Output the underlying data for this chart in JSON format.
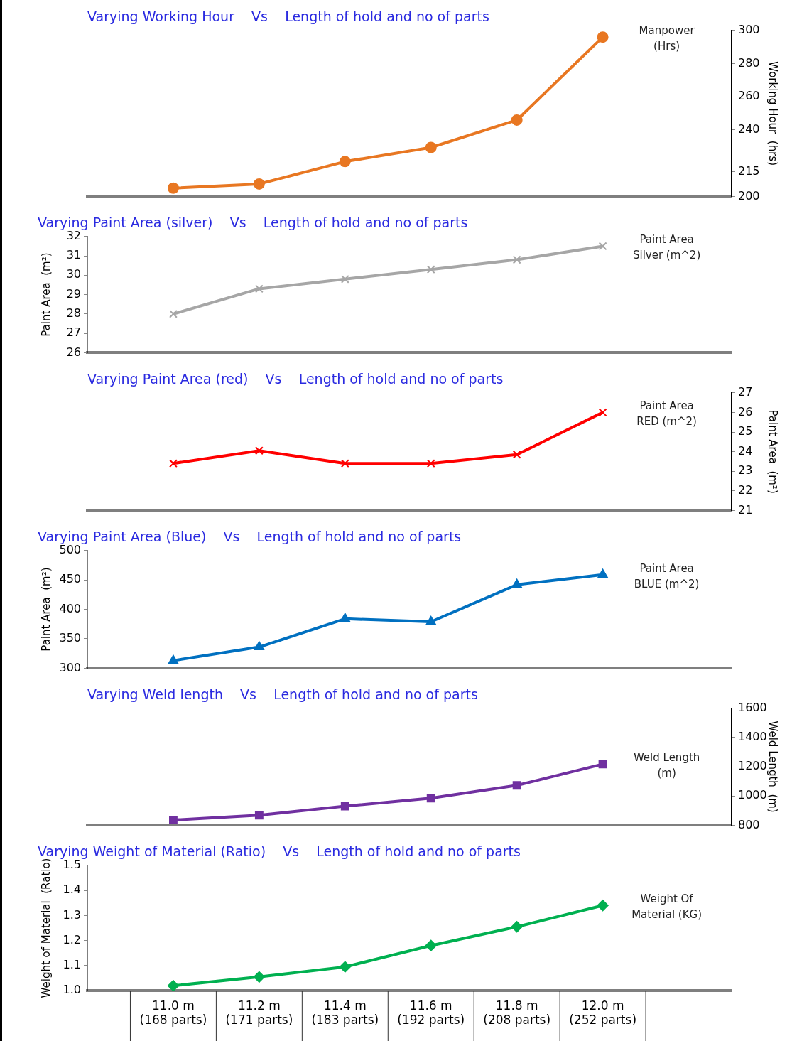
{
  "chart_data": [
    {
      "type": "line",
      "title": "Varying Working Hour    Vs    Length of hold and no of parts",
      "categories": [
        null,
        null,
        null,
        null,
        null,
        null
      ],
      "series": [
        {
          "name": "Manpower (Hrs)",
          "color": "#e87722",
          "values": [
            205,
            207.5,
            221,
            229.5,
            246,
            296
          ]
        }
      ],
      "ylabel": "Working Hour  (hrs)",
      "ylim": [
        200,
        300
      ],
      "yticks": [
        200,
        215,
        240,
        260,
        280,
        300
      ],
      "marker": "circle",
      "tick_labels": "y",
      "grid": false,
      "legend": false
    },
    {
      "type": "line",
      "title": "Varying Paint Area (silver)    Vs    Length of hold and no of parts",
      "categories": [
        null,
        null,
        null,
        null,
        null,
        null
      ],
      "series": [
        {
          "name": "Paint Area Silver (m^2)",
          "color": "#a6a6a6",
          "values": [
            28.0,
            29.3,
            29.8,
            30.3,
            30.8,
            31.5
          ]
        }
      ],
      "ylabel": "Paint Area  (m²)",
      "ylim": [
        26,
        32
      ],
      "yticks": [
        26,
        27,
        28,
        29,
        30,
        31,
        32
      ],
      "marker": "cross",
      "tick_labels": "y",
      "grid": false,
      "legend": false
    },
    {
      "type": "line",
      "title": "Varying Paint Area (red)    Vs    Length of hold and no of parts",
      "categories": [
        null,
        null,
        null,
        null,
        null,
        null
      ],
      "series": [
        {
          "name": "Paint Area RED (m^2)",
          "color": "#ff0000",
          "values": [
            23.4,
            24.05,
            23.4,
            23.4,
            23.85,
            26.0
          ]
        }
      ],
      "ylabel": "Paint Area  (m²)",
      "ylim": [
        21,
        27
      ],
      "yticks": [
        21,
        22,
        23,
        24,
        25,
        26,
        27
      ],
      "marker": "cross",
      "tick_labels": "y",
      "grid": false,
      "legend": false
    },
    {
      "type": "line",
      "title": "Varying Paint Area (Blue)    Vs    Length of hold and no of parts",
      "categories": [
        null,
        null,
        null,
        null,
        null,
        null
      ],
      "series": [
        {
          "name": "Paint Area BLUE (m^2)",
          "color": "#0070c0",
          "values": [
            313,
            336,
            384,
            379,
            442,
            459
          ]
        }
      ],
      "ylabel": "Paint Area  (m²)",
      "ylim": [
        300,
        500
      ],
      "yticks": [
        300,
        350,
        400,
        450,
        500
      ],
      "marker": "triangle",
      "tick_labels": "y",
      "grid": false,
      "legend": false
    },
    {
      "type": "line",
      "title": "Varying Weld length    Vs    Length of hold and no of parts",
      "categories": [
        null,
        null,
        null,
        null,
        null,
        null
      ],
      "series": [
        {
          "name": "Weld Length (m)",
          "color": "#7030a0",
          "values": [
            836,
            869,
            931,
            985,
            1073,
            1218
          ]
        }
      ],
      "ylabel": "Weld Length  (m)",
      "ylim": [
        800,
        1600
      ],
      "yticks": [
        800,
        1000,
        1200,
        1400,
        1600
      ],
      "marker": "square",
      "tick_labels": "y",
      "grid": false,
      "legend": false
    },
    {
      "type": "line",
      "title": "Varying Weight of Material (Ratio)    Vs    Length of hold and no of parts",
      "categories": [
        "11.0 m\n(168 parts)",
        "11.2 m\n(171 parts)",
        "11.4 m\n(183 parts)",
        "11.6 m\n(192 parts)",
        "11.8 m\n(208 parts)",
        "12.0 m\n(252 parts)"
      ],
      "series": [
        {
          "name": "Weight Of Material (KG)",
          "color": "#00b050",
          "values": [
            1.02,
            1.055,
            1.095,
            1.18,
            1.255,
            1.34
          ]
        }
      ],
      "ylabel": "Weight of Material  (Ratio)",
      "ylim": [
        1.0,
        1.5
      ],
      "yticks": [
        {
          "value": 1.0,
          "label": "1.0"
        },
        1.1,
        1.2,
        1.3,
        1.4,
        1.5
      ],
      "marker": "diamond",
      "grid": false,
      "legend": false
    }
  ]
}
